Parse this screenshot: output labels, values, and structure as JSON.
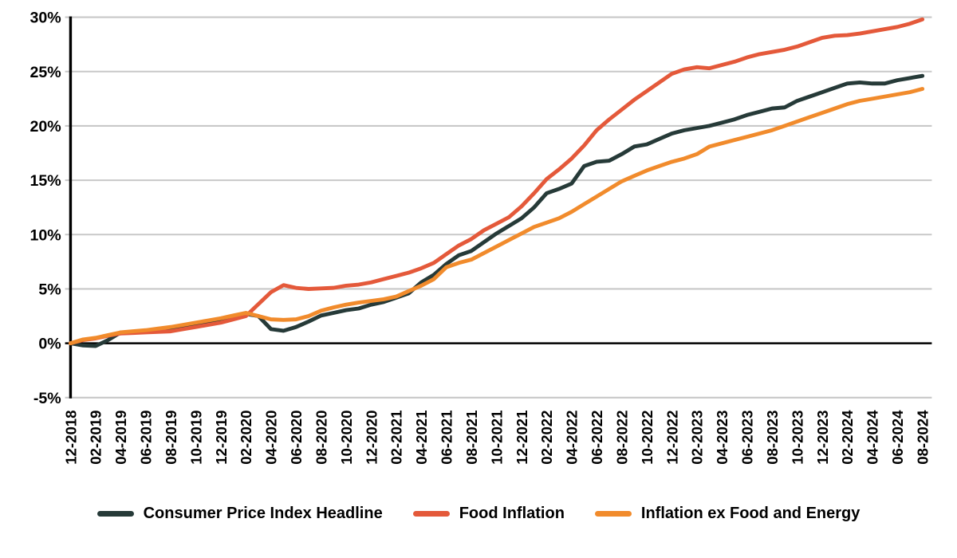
{
  "colors": {
    "background": "#ffffff",
    "grid": "#c8c8c8",
    "axis": "#000000",
    "cpi_headline": "#263a38",
    "food_inflation": "#e4593a",
    "core_inflation": "#f18b2c"
  },
  "chart_data": {
    "type": "line",
    "title": "",
    "xlabel": "",
    "ylabel": "",
    "ylim": [
      -5,
      30
    ],
    "y_tick_step": 5,
    "y_tick_labels": [
      "30%",
      "25%",
      "20%",
      "15%",
      "10%",
      "5%",
      "0%",
      "-5%"
    ],
    "x_tick_every": 2,
    "grid": true,
    "legend_position": "bottom",
    "categories": [
      "12-2018",
      "01-2019",
      "02-2019",
      "03-2019",
      "04-2019",
      "05-2019",
      "06-2019",
      "07-2019",
      "08-2019",
      "09-2019",
      "10-2019",
      "11-2019",
      "12-2019",
      "01-2020",
      "02-2020",
      "03-2020",
      "04-2020",
      "05-2020",
      "06-2020",
      "07-2020",
      "08-2020",
      "09-2020",
      "10-2020",
      "11-2020",
      "12-2020",
      "01-2021",
      "02-2021",
      "03-2021",
      "04-2021",
      "05-2021",
      "06-2021",
      "07-2021",
      "08-2021",
      "09-2021",
      "10-2021",
      "11-2021",
      "12-2021",
      "01-2022",
      "02-2022",
      "03-2022",
      "04-2022",
      "05-2022",
      "06-2022",
      "07-2022",
      "08-2022",
      "09-2022",
      "10-2022",
      "11-2022",
      "12-2022",
      "01-2023",
      "02-2023",
      "03-2023",
      "04-2023",
      "05-2023",
      "06-2023",
      "07-2023",
      "08-2023",
      "09-2023",
      "10-2023",
      "11-2023",
      "12-2023",
      "01-2024",
      "02-2024",
      "03-2024",
      "04-2024",
      "05-2024",
      "06-2024",
      "07-2024",
      "08-2024"
    ],
    "series": [
      {
        "name": "Consumer Price Index Headline",
        "color": "#263a38",
        "values": [
          0,
          -0.2,
          -0.25,
          0.3,
          1.0,
          1.0,
          1.05,
          1.1,
          1.3,
          1.5,
          1.7,
          1.9,
          2.1,
          2.4,
          2.7,
          2.5,
          1.3,
          1.15,
          1.5,
          2.0,
          2.55,
          2.8,
          3.05,
          3.2,
          3.55,
          3.8,
          4.2,
          4.6,
          5.6,
          6.3,
          7.3,
          8.1,
          8.5,
          9.3,
          10.1,
          10.8,
          11.5,
          12.5,
          13.8,
          14.2,
          14.7,
          16.3,
          16.7,
          16.8,
          17.4,
          18.1,
          18.3,
          18.8,
          19.3,
          19.6,
          19.8,
          20.0,
          20.3,
          20.6,
          21.0,
          21.3,
          21.6,
          21.7,
          22.3,
          22.7,
          23.1,
          23.5,
          23.9,
          24.0,
          23.9,
          23.9,
          24.2,
          24.4,
          24.6
        ]
      },
      {
        "name": "Food Inflation",
        "color": "#e4593a",
        "values": [
          0,
          0.3,
          0.45,
          0.7,
          0.9,
          0.95,
          1.0,
          1.05,
          1.1,
          1.3,
          1.5,
          1.7,
          1.9,
          2.2,
          2.5,
          3.6,
          4.7,
          5.35,
          5.1,
          5.0,
          5.05,
          5.1,
          5.3,
          5.4,
          5.6,
          5.9,
          6.2,
          6.5,
          6.9,
          7.4,
          8.2,
          9.0,
          9.6,
          10.4,
          11.0,
          11.6,
          12.6,
          13.8,
          15.1,
          16.0,
          17.0,
          18.2,
          19.6,
          20.6,
          21.5,
          22.4,
          23.2,
          24.0,
          24.8,
          25.2,
          25.4,
          25.3,
          25.6,
          25.9,
          26.3,
          26.6,
          26.8,
          27.0,
          27.3,
          27.7,
          28.1,
          28.3,
          28.35,
          28.5,
          28.7,
          28.9,
          29.1,
          29.4,
          29.8
        ]
      },
      {
        "name": "Inflation ex Food and Energy",
        "color": "#f18b2c",
        "values": [
          0,
          0.35,
          0.5,
          0.75,
          1.0,
          1.1,
          1.2,
          1.35,
          1.5,
          1.7,
          1.9,
          2.1,
          2.3,
          2.55,
          2.8,
          2.5,
          2.2,
          2.15,
          2.2,
          2.5,
          3.0,
          3.3,
          3.55,
          3.75,
          3.9,
          4.05,
          4.3,
          4.8,
          5.3,
          5.9,
          7.0,
          7.4,
          7.7,
          8.3,
          8.9,
          9.5,
          10.1,
          10.7,
          11.1,
          11.5,
          12.1,
          12.8,
          13.5,
          14.2,
          14.9,
          15.4,
          15.9,
          16.3,
          16.7,
          17.0,
          17.4,
          18.1,
          18.4,
          18.7,
          19.0,
          19.3,
          19.6,
          20.0,
          20.4,
          20.8,
          21.2,
          21.6,
          22.0,
          22.3,
          22.5,
          22.7,
          22.9,
          23.1,
          23.4
        ]
      }
    ]
  },
  "legend": {
    "items": [
      {
        "label": "Consumer Price Index Headline",
        "color": "#263a38"
      },
      {
        "label": "Food Inflation",
        "color": "#e4593a"
      },
      {
        "label": "Inflation ex Food and Energy",
        "color": "#f18b2c"
      }
    ]
  }
}
